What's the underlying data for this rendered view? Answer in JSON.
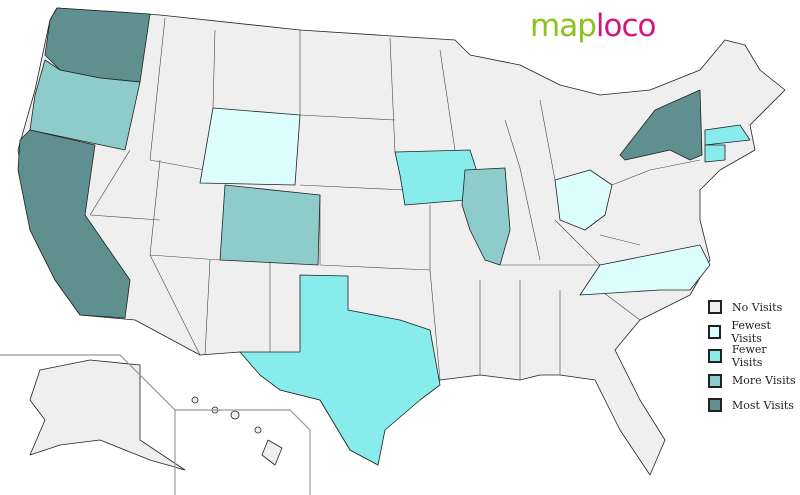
{
  "logo": {
    "part1": "map",
    "part2": "loco"
  },
  "legend": [
    {
      "label": "No Visits",
      "color": "#efefef"
    },
    {
      "label": "Fewest Visits",
      "color": "#dcfefe"
    },
    {
      "label": "Fewer Visits",
      "color": "#88ecec"
    },
    {
      "label": "More Visits",
      "color": "#8ecbcb"
    },
    {
      "label": "Most Visits",
      "color": "#5f8f8f"
    }
  ],
  "states": {
    "WA": "Most Visits",
    "OR": "More Visits",
    "CA": "Most Visits",
    "WY": "Fewest Visits",
    "CO": "More Visits",
    "TX": "Fewer Visits",
    "IA": "Fewer Visits",
    "IL": "More Visits",
    "OH": "Fewest Visits",
    "NC": "Fewest Visits",
    "NY": "Most Visits",
    "MA": "Fewer Visits",
    "CT": "Fewer Visits"
  }
}
